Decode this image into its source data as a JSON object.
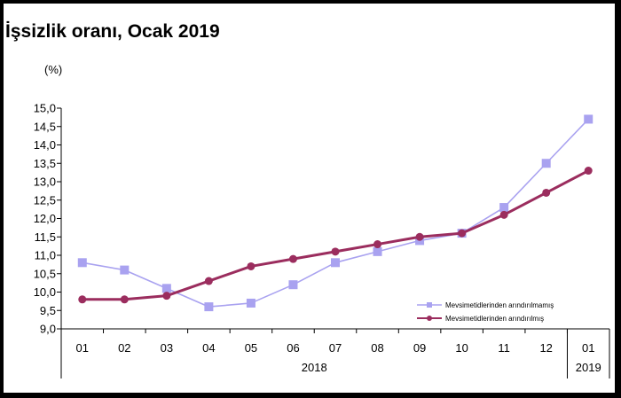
{
  "chart_data": {
    "type": "line",
    "title": "İşsizlik oranı, Ocak 2019",
    "ylabel": "(%)",
    "xlabel": "",
    "categories": [
      "01",
      "02",
      "03",
      "04",
      "05",
      "06",
      "07",
      "08",
      "09",
      "10",
      "11",
      "12",
      "01"
    ],
    "year_groups": [
      {
        "label": "2018",
        "from": 0,
        "to": 11
      },
      {
        "label": "2019",
        "from": 12,
        "to": 12
      }
    ],
    "ylim": [
      9.0,
      15.0
    ],
    "ystep": 0.5,
    "ytick_labels": [
      "9,0",
      "9,5",
      "10,0",
      "10,5",
      "11,0",
      "11,5",
      "12,0",
      "12,5",
      "13,0",
      "13,5",
      "14,0",
      "14,5",
      "15,0"
    ],
    "grid": false,
    "legend_position": "bottom-right",
    "series": [
      {
        "name": "Mevsimetidlerinden arındırılmamış",
        "color": "#a9a2f0",
        "marker": "square",
        "values": [
          10.8,
          10.6,
          10.1,
          9.6,
          9.7,
          10.2,
          10.8,
          11.1,
          11.4,
          11.6,
          12.3,
          13.5,
          14.7
        ]
      },
      {
        "name": "Mevsimetidlerinden arındırılmış",
        "color": "#9b2d5e",
        "marker": "circle",
        "values": [
          9.8,
          9.8,
          9.9,
          10.3,
          10.7,
          10.9,
          11.1,
          11.3,
          11.5,
          11.6,
          12.1,
          12.7,
          13.3
        ]
      }
    ]
  }
}
